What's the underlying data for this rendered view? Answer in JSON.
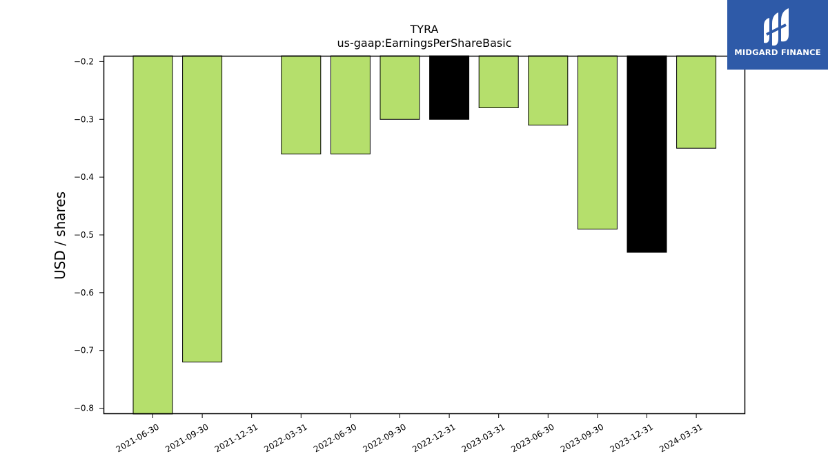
{
  "chart_data": {
    "type": "bar",
    "title": "TYRA",
    "subtitle": "us-gaap:EarningsPerShareBasic",
    "ylabel": "USD / shares",
    "xlabel": "",
    "ylim": [
      -0.8,
      -0.2
    ],
    "yticks": [
      -0.2,
      -0.3,
      -0.4,
      -0.5,
      -0.6,
      -0.7,
      -0.8
    ],
    "ytick_labels": [
      "−0.2",
      "−0.3",
      "−0.4",
      "−0.5",
      "−0.6",
      "−0.7",
      "−0.8"
    ],
    "categories": [
      "2021-06-30",
      "2021-09-30",
      "2021-12-31",
      "2022-03-31",
      "2022-06-30",
      "2022-09-30",
      "2022-12-31",
      "2023-03-31",
      "2023-06-30",
      "2023-09-30",
      "2023-12-31",
      "2024-03-31"
    ],
    "values": [
      -0.81,
      -0.72,
      null,
      -0.36,
      -0.36,
      -0.3,
      -0.3,
      -0.28,
      -0.31,
      -0.49,
      -0.53,
      -0.35
    ],
    "bar_colors": [
      "#b5df6c",
      "#b5df6c",
      null,
      "#b5df6c",
      "#b5df6c",
      "#b5df6c",
      "#000000",
      "#b5df6c",
      "#b5df6c",
      "#b5df6c",
      "#000000",
      "#b5df6c"
    ],
    "grid": false
  },
  "logo": {
    "text": "MIDGARD FINANCE",
    "background": "#2e5aa8"
  }
}
